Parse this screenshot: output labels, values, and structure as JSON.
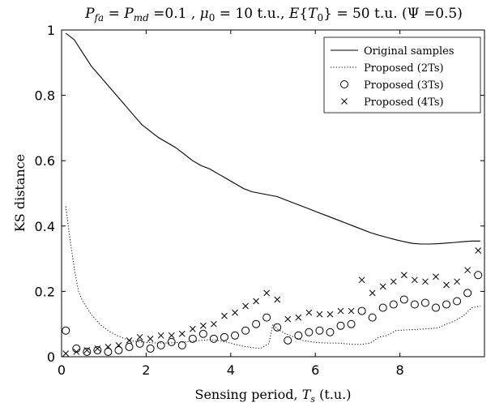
{
  "chart_data": {
    "type": "line",
    "title": "P_fa = P_md =0.1 , μ_0 = 10 t.u., E{T_0} = 50 t.u. (Ψ =0.5)",
    "title_parts": {
      "p": "P",
      "p_fa_sub": "fa",
      "eq1": " = ",
      "p2": "P",
      "p_md_sub": "md",
      "eq2": " =0.1 , ",
      "mu": "μ",
      "mu_sub": "0",
      "eq3": " = 10 t.u., ",
      "e": "E",
      "brace_open": "{",
      "t": "T",
      "t_sub": "0",
      "brace_close": "}",
      "eq4": " = 50 t.u. (Ψ =0.5)"
    },
    "xlabel": "Sensing period, ",
    "xlabel_sym": "T",
    "xlabel_sub": "s",
    "xlabel_unit": " (t.u.)",
    "ylabel": "KS distance",
    "xlim": [
      0,
      10
    ],
    "ylim": [
      0,
      1
    ],
    "x_ticks": [
      0,
      2,
      4,
      6,
      8
    ],
    "x_tick_labels": [
      "0",
      "2",
      "4",
      "6",
      "8"
    ],
    "y_ticks": [
      0,
      0.2,
      0.4,
      0.6,
      0.8,
      1
    ],
    "y_tick_labels": [
      "0",
      "0.2",
      "0.4",
      "0.6",
      "0.8",
      "1"
    ],
    "grid": false,
    "legend_position": "top-right",
    "series": [
      {
        "name": "Original samples",
        "style": "solid",
        "x": [
          0.1,
          0.3,
          0.5,
          0.7,
          0.9,
          1.1,
          1.3,
          1.5,
          1.7,
          1.9,
          2.1,
          2.3,
          2.5,
          2.7,
          2.9,
          3.1,
          3.3,
          3.5,
          3.7,
          3.9,
          4.1,
          4.3,
          4.5,
          4.7,
          4.9,
          5.1,
          5.3,
          5.5,
          5.7,
          5.9,
          6.1,
          6.3,
          6.5,
          6.7,
          6.9,
          7.1,
          7.3,
          7.5,
          7.7,
          7.9,
          8.1,
          8.3,
          8.5,
          8.7,
          8.9,
          9.1,
          9.3,
          9.5,
          9.7,
          9.9
        ],
        "y": [
          0.99,
          0.97,
          0.93,
          0.89,
          0.86,
          0.83,
          0.8,
          0.77,
          0.74,
          0.71,
          0.69,
          0.67,
          0.655,
          0.64,
          0.62,
          0.6,
          0.585,
          0.575,
          0.56,
          0.545,
          0.53,
          0.515,
          0.505,
          0.5,
          0.495,
          0.49,
          0.48,
          0.47,
          0.46,
          0.45,
          0.44,
          0.43,
          0.42,
          0.41,
          0.4,
          0.39,
          0.38,
          0.372,
          0.365,
          0.358,
          0.352,
          0.347,
          0.345,
          0.345,
          0.346,
          0.348,
          0.35,
          0.352,
          0.354,
          0.354
        ]
      },
      {
        "name": "Proposed (2Ts)",
        "style": "dotted",
        "x": [
          0.1,
          0.2,
          0.3,
          0.4,
          0.5,
          0.7,
          0.9,
          1.1,
          1.3,
          1.5,
          1.7,
          1.9,
          2.1,
          2.3,
          2.5,
          2.7,
          2.9,
          3.1,
          3.3,
          3.5,
          3.7,
          3.9,
          4.1,
          4.3,
          4.5,
          4.7,
          4.9,
          5.0,
          5.1,
          5.3,
          5.5,
          5.7,
          5.9,
          6.1,
          6.3,
          6.5,
          6.7,
          6.9,
          7.1,
          7.3,
          7.5,
          7.7,
          7.9,
          8.1,
          8.3,
          8.5,
          8.7,
          8.9,
          9.1,
          9.3,
          9.5,
          9.7,
          9.9
        ],
        "y": [
          0.46,
          0.36,
          0.27,
          0.2,
          0.17,
          0.13,
          0.1,
          0.08,
          0.065,
          0.055,
          0.048,
          0.045,
          0.043,
          0.042,
          0.042,
          0.043,
          0.045,
          0.048,
          0.05,
          0.052,
          0.05,
          0.045,
          0.038,
          0.032,
          0.028,
          0.025,
          0.04,
          0.1,
          0.085,
          0.07,
          0.06,
          0.05,
          0.046,
          0.043,
          0.042,
          0.042,
          0.04,
          0.038,
          0.038,
          0.042,
          0.06,
          0.065,
          0.08,
          0.082,
          0.083,
          0.084,
          0.086,
          0.088,
          0.1,
          0.11,
          0.125,
          0.15,
          0.155
        ]
      },
      {
        "name": "Proposed (3Ts)",
        "style": "circle",
        "x": [
          0.1,
          0.35,
          0.6,
          0.85,
          1.1,
          1.35,
          1.6,
          1.85,
          2.1,
          2.35,
          2.6,
          2.85,
          3.1,
          3.35,
          3.6,
          3.85,
          4.1,
          4.35,
          4.6,
          4.85,
          5.1,
          5.35,
          5.6,
          5.85,
          6.1,
          6.35,
          6.6,
          6.85,
          7.1,
          7.35,
          7.6,
          7.85,
          8.1,
          8.35,
          8.6,
          8.85,
          9.1,
          9.35,
          9.6,
          9.85
        ],
        "y": [
          0.08,
          0.025,
          0.015,
          0.02,
          0.015,
          0.02,
          0.03,
          0.04,
          0.025,
          0.035,
          0.045,
          0.035,
          0.055,
          0.07,
          0.055,
          0.06,
          0.065,
          0.08,
          0.1,
          0.12,
          0.09,
          0.05,
          0.065,
          0.075,
          0.08,
          0.075,
          0.095,
          0.1,
          0.14,
          0.12,
          0.15,
          0.16,
          0.175,
          0.16,
          0.165,
          0.15,
          0.16,
          0.17,
          0.195,
          0.25
        ]
      },
      {
        "name": "Proposed (4Ts)",
        "style": "cross",
        "x": [
          0.1,
          0.35,
          0.6,
          0.85,
          1.1,
          1.35,
          1.6,
          1.85,
          2.1,
          2.35,
          2.6,
          2.85,
          3.1,
          3.35,
          3.6,
          3.85,
          4.1,
          4.35,
          4.6,
          4.85,
          5.1,
          5.35,
          5.6,
          5.85,
          6.1,
          6.35,
          6.6,
          6.85,
          7.1,
          7.35,
          7.6,
          7.85,
          8.1,
          8.35,
          8.6,
          8.85,
          9.1,
          9.35,
          9.6,
          9.85
        ],
        "y": [
          0.01,
          0.015,
          0.02,
          0.025,
          0.03,
          0.035,
          0.05,
          0.06,
          0.055,
          0.065,
          0.065,
          0.07,
          0.085,
          0.095,
          0.1,
          0.125,
          0.135,
          0.155,
          0.17,
          0.195,
          0.175,
          0.115,
          0.12,
          0.135,
          0.13,
          0.13,
          0.14,
          0.14,
          0.235,
          0.195,
          0.215,
          0.23,
          0.25,
          0.235,
          0.23,
          0.245,
          0.22,
          0.23,
          0.265,
          0.325
        ]
      }
    ]
  }
}
